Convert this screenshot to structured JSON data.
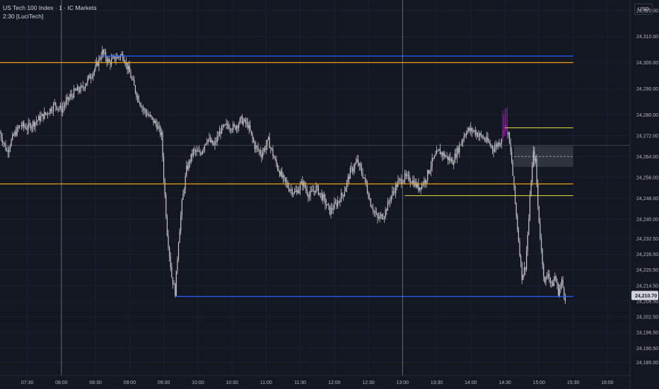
{
  "header": {
    "symbol_line": "US Tech 100 Index · 1 · IC Markets",
    "indicator_line": "2:30 [LuciTech]"
  },
  "currency_button": "USD",
  "current_price_label": "24,210.70",
  "colors": {
    "background": "#131722",
    "candle": "#c7c8cc",
    "level_orange": "#f0a31a",
    "level_blue": "#2962ff",
    "level_yellow": "#d4c93a",
    "spike_magenta": "#9c27b0",
    "crosshair": "#9598a1"
  },
  "chart_data": {
    "type": "candlestick",
    "title": "US Tech 100 Index · 1 · IC Markets",
    "ylim": [
      24180,
      24324
    ],
    "y_ticks": [
      {
        "value": 24320,
        "label": "24,320.00"
      },
      {
        "value": 24310,
        "label": "24,310.00"
      },
      {
        "value": 24300,
        "label": "24,300.00"
      },
      {
        "value": 24290,
        "label": "24,290.00"
      },
      {
        "value": 24280,
        "label": "24,280.00"
      },
      {
        "value": 24272,
        "label": "24,272.00"
      },
      {
        "value": 24264,
        "label": "24,264.00"
      },
      {
        "value": 24256,
        "label": "24,256.00"
      },
      {
        "value": 24248,
        "label": "24,248.00"
      },
      {
        "value": 24240,
        "label": "24,240.00"
      },
      {
        "value": 24232.5,
        "label": "24,232.50"
      },
      {
        "value": 24226.5,
        "label": "24,226.50"
      },
      {
        "value": 24220.5,
        "label": "24,220.50"
      },
      {
        "value": 24214.5,
        "label": "24,214.50"
      },
      {
        "value": 24208.5,
        "label": "24,208.50"
      },
      {
        "value": 24202.5,
        "label": "24,202.50"
      },
      {
        "value": 24196.5,
        "label": "24,196.50"
      },
      {
        "value": 24190.5,
        "label": "24,190.50"
      },
      {
        "value": 24185,
        "label": "24,185.00"
      }
    ],
    "x_ticks": [
      "07:30",
      "08:00",
      "08:30",
      "09:00",
      "09:30",
      "10:00",
      "10:30",
      "11:00",
      "11:30",
      "12:00",
      "12:30",
      "13:00",
      "13:30",
      "14:00",
      "14:30",
      "15:00",
      "15:30",
      "16:00"
    ],
    "x_range": [
      "07:06",
      "16:20"
    ],
    "vertical_crosshairs": [
      "08:00",
      "13:00"
    ],
    "price_path": [
      [
        "07:06",
        24273
      ],
      [
        "07:12",
        24266
      ],
      [
        "07:18",
        24272
      ],
      [
        "07:24",
        24276
      ],
      [
        "07:30",
        24275
      ],
      [
        "07:36",
        24277
      ],
      [
        "07:42",
        24279
      ],
      [
        "07:48",
        24281
      ],
      [
        "07:54",
        24284
      ],
      [
        "08:00",
        24282
      ],
      [
        "08:06",
        24286
      ],
      [
        "08:12",
        24289
      ],
      [
        "08:18",
        24290
      ],
      [
        "08:24",
        24294
      ],
      [
        "08:30",
        24298
      ],
      [
        "08:36",
        24304
      ],
      [
        "08:42",
        24300
      ],
      [
        "08:48",
        24302
      ],
      [
        "08:54",
        24303
      ],
      [
        "09:00",
        24296
      ],
      [
        "09:06",
        24288
      ],
      [
        "09:12",
        24282
      ],
      [
        "09:18",
        24279
      ],
      [
        "09:24",
        24276
      ],
      [
        "09:28",
        24272
      ],
      [
        "09:30",
        24256
      ],
      [
        "09:33",
        24235
      ],
      [
        "09:37",
        24218
      ],
      [
        "09:40",
        24212
      ],
      [
        "09:43",
        24232
      ],
      [
        "09:46",
        24246
      ],
      [
        "09:50",
        24259
      ],
      [
        "09:56",
        24266
      ],
      [
        "10:02",
        24265
      ],
      [
        "10:08",
        24271
      ],
      [
        "10:14",
        24268
      ],
      [
        "10:20",
        24274
      ],
      [
        "10:26",
        24276
      ],
      [
        "10:32",
        24275
      ],
      [
        "10:38",
        24278
      ],
      [
        "10:44",
        24276
      ],
      [
        "10:50",
        24268
      ],
      [
        "10:56",
        24265
      ],
      [
        "11:02",
        24270
      ],
      [
        "11:08",
        24262
      ],
      [
        "11:14",
        24256
      ],
      [
        "11:20",
        24252
      ],
      [
        "11:26",
        24250
      ],
      [
        "11:32",
        24254
      ],
      [
        "11:38",
        24249
      ],
      [
        "11:44",
        24252
      ],
      [
        "11:50",
        24248
      ],
      [
        "11:56",
        24243
      ],
      [
        "12:02",
        24246
      ],
      [
        "12:08",
        24250
      ],
      [
        "12:14",
        24258
      ],
      [
        "12:20",
        24262
      ],
      [
        "12:26",
        24256
      ],
      [
        "12:32",
        24246
      ],
      [
        "12:38",
        24240
      ],
      [
        "12:44",
        24242
      ],
      [
        "12:50",
        24249
      ],
      [
        "12:56",
        24254
      ],
      [
        "13:02",
        24256
      ],
      [
        "13:08",
        24255
      ],
      [
        "13:14",
        24252
      ],
      [
        "13:20",
        24255
      ],
      [
        "13:26",
        24262
      ],
      [
        "13:32",
        24266
      ],
      [
        "13:38",
        24264
      ],
      [
        "13:44",
        24262
      ],
      [
        "13:50",
        24268
      ],
      [
        "13:56",
        24274
      ],
      [
        "14:02",
        24274
      ],
      [
        "14:08",
        24272
      ],
      [
        "14:14",
        24270
      ],
      [
        "14:20",
        24267
      ],
      [
        "14:26",
        24270
      ],
      [
        "14:30",
        24276
      ],
      [
        "14:33",
        24272
      ],
      [
        "14:36",
        24262
      ],
      [
        "14:39",
        24246
      ],
      [
        "14:42",
        24232
      ],
      [
        "14:45",
        24218
      ],
      [
        "14:48",
        24222
      ],
      [
        "14:51",
        24240
      ],
      [
        "14:53",
        24255
      ],
      [
        "14:55",
        24265
      ],
      [
        "14:57",
        24262
      ],
      [
        "14:59",
        24245
      ],
      [
        "15:02",
        24228
      ],
      [
        "15:05",
        24215
      ],
      [
        "15:08",
        24220
      ],
      [
        "15:11",
        24214
      ],
      [
        "15:14",
        24218
      ],
      [
        "15:17",
        24212
      ],
      [
        "15:20",
        24216
      ],
      [
        "15:23",
        24210
      ]
    ],
    "horizontal_levels": [
      {
        "price": 24302.5,
        "from": "08:34",
        "to": "15:30",
        "color": "blue"
      },
      {
        "price": 24300,
        "from": "07:06",
        "to": "15:30",
        "color": "orange"
      },
      {
        "price": 24253.5,
        "from": "07:06",
        "to": "15:30",
        "color": "orange"
      },
      {
        "price": 24210.3,
        "from": "09:40",
        "to": "15:30",
        "color": "blue"
      },
      {
        "price": 24275,
        "from": "14:30",
        "to": "15:30",
        "color": "yellow"
      },
      {
        "price": 24249,
        "from": "13:02",
        "to": "15:30",
        "color": "yellow"
      }
    ],
    "zone": {
      "from": "14:38",
      "to": "15:30",
      "price_top": 24268,
      "price_bottom": 24260,
      "mid_dashed": 24264
    },
    "current_price": 24210.7
  }
}
